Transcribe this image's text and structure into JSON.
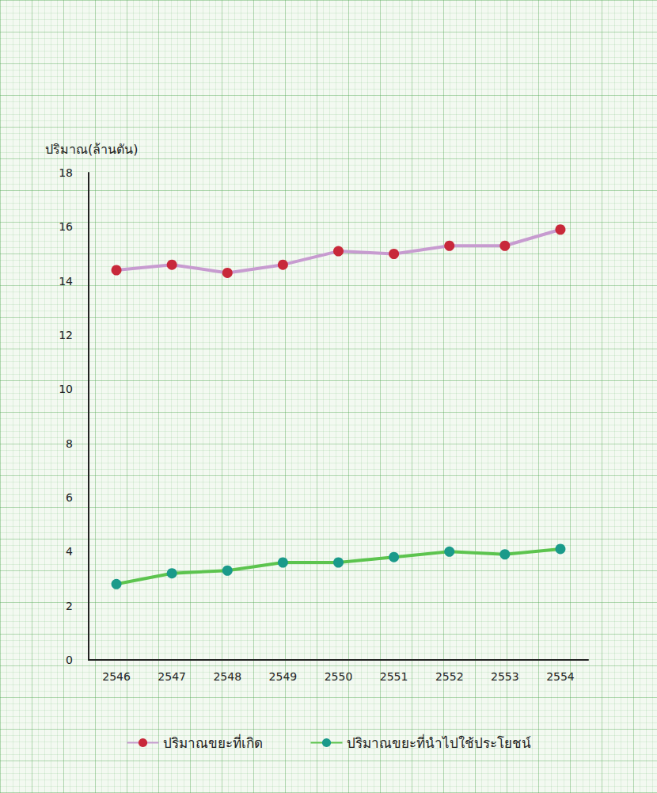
{
  "chart_data": {
    "type": "line",
    "y_label": "ปริมาณ(ล้านตัน)",
    "categories": [
      "2546",
      "2547",
      "2548",
      "2549",
      "2550",
      "2551",
      "2552",
      "2553",
      "2554"
    ],
    "series": [
      {
        "name": "ปริมาณขยะที่เกิด",
        "color": "#c8283a",
        "marker": "circle",
        "values": [
          14.4,
          14.6,
          14.3,
          14.6,
          15.1,
          15.0,
          15.3,
          15.3,
          15.9
        ]
      },
      {
        "name": "ปริมาณขยะที่นำไปใช้ประโยชน์",
        "color": "#1a9a8a",
        "marker": "circle",
        "values": [
          2.8,
          3.2,
          3.3,
          3.6,
          3.6,
          3.8,
          4.0,
          3.9,
          4.1
        ]
      }
    ],
    "ylim": [
      0,
      18
    ],
    "yticks": [
      0,
      2,
      4,
      6,
      8,
      10,
      12,
      14,
      16,
      18
    ],
    "grid": false,
    "legend": "bottom"
  }
}
